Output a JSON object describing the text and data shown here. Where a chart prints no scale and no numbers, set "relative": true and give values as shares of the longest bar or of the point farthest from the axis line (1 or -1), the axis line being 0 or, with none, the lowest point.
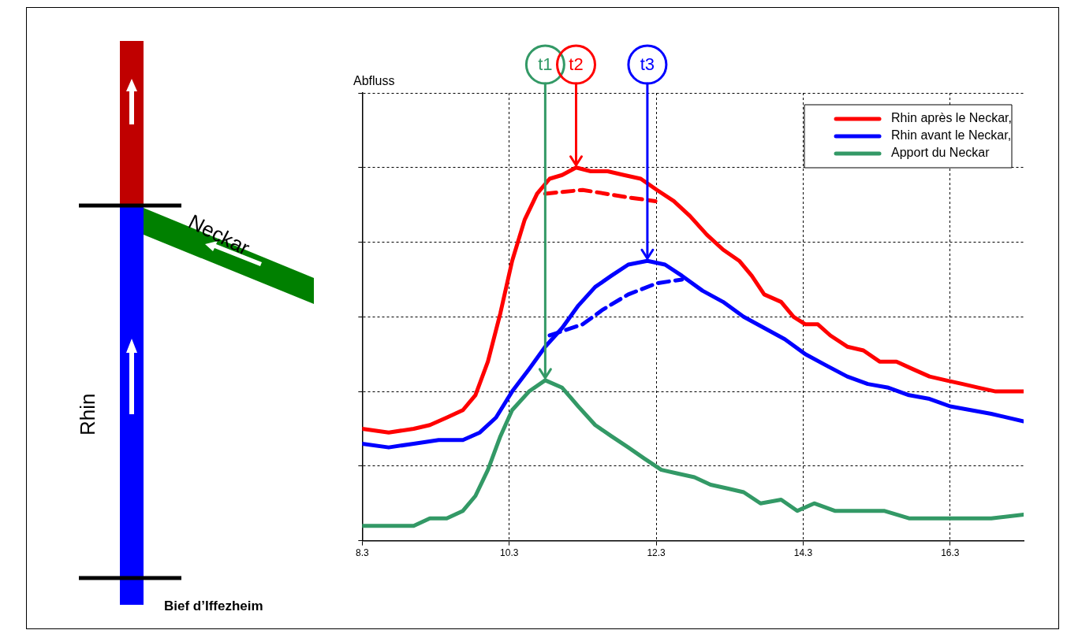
{
  "chart_data": {
    "type": "line",
    "relative": true,
    "xlim": [
      8.3,
      17.3
    ],
    "xticks": [
      8.3,
      10.3,
      12.3,
      14.3,
      16.3
    ],
    "grid": true,
    "legend": "top right",
    "marker": "none",
    "series": [
      {
        "name": "Rhin après le Neckar,",
        "color": "#ff0000",
        "x": [
          8.3,
          8.66,
          9.0,
          9.22,
          9.45,
          9.67,
          9.84,
          10.01,
          10.18,
          10.34,
          10.51,
          10.68,
          10.85,
          11.02,
          11.21,
          11.41,
          11.64,
          11.86,
          12.09,
          12.31,
          12.54,
          12.76,
          12.99,
          13.21,
          13.43,
          13.6,
          13.77,
          14.0,
          14.17,
          14.33,
          14.5,
          14.67,
          14.9,
          15.12,
          15.34,
          15.57,
          15.79,
          16.02,
          16.24,
          16.47,
          16.69,
          16.92,
          17.3
        ],
        "values": [
          0.3,
          0.29,
          0.3,
          0.31,
          0.33,
          0.35,
          0.39,
          0.48,
          0.61,
          0.75,
          0.86,
          0.93,
          0.97,
          0.98,
          1.0,
          0.99,
          0.99,
          0.98,
          0.97,
          0.94,
          0.91,
          0.87,
          0.82,
          0.78,
          0.75,
          0.71,
          0.66,
          0.64,
          0.6,
          0.58,
          0.58,
          0.55,
          0.52,
          0.51,
          0.48,
          0.48,
          0.46,
          0.44,
          0.43,
          0.42,
          0.41,
          0.4,
          0.4
        ]
      },
      {
        "name": "Rhin avant le Neckar,",
        "color": "#0000ff",
        "x": [
          8.3,
          8.66,
          9.0,
          9.34,
          9.67,
          9.9,
          10.12,
          10.34,
          10.57,
          10.79,
          11.02,
          11.24,
          11.47,
          11.69,
          11.92,
          12.18,
          12.42,
          12.65,
          12.93,
          13.21,
          13.49,
          13.77,
          14.05,
          14.33,
          14.61,
          14.9,
          15.18,
          15.46,
          15.74,
          16.02,
          16.3,
          16.58,
          16.86,
          17.3
        ],
        "values": [
          0.26,
          0.25,
          0.26,
          0.27,
          0.27,
          0.29,
          0.33,
          0.4,
          0.46,
          0.52,
          0.57,
          0.63,
          0.68,
          0.71,
          0.74,
          0.75,
          0.74,
          0.71,
          0.67,
          0.64,
          0.6,
          0.57,
          0.54,
          0.5,
          0.47,
          0.44,
          0.42,
          0.41,
          0.39,
          0.38,
          0.36,
          0.35,
          0.34,
          0.32
        ]
      },
      {
        "name": "Apport du Neckar",
        "color": "#339966",
        "x": [
          8.3,
          8.66,
          9.0,
          9.22,
          9.45,
          9.67,
          9.84,
          10.01,
          10.18,
          10.34,
          10.57,
          10.79,
          11.02,
          11.24,
          11.47,
          11.69,
          11.92,
          12.14,
          12.37,
          12.59,
          12.82,
          13.04,
          13.27,
          13.49,
          13.72,
          14.0,
          14.22,
          14.45,
          14.73,
          15.06,
          15.4,
          15.74,
          16.08,
          16.41,
          16.86,
          17.3
        ],
        "values": [
          0.04,
          0.04,
          0.04,
          0.06,
          0.06,
          0.08,
          0.12,
          0.19,
          0.28,
          0.35,
          0.4,
          0.43,
          0.41,
          0.36,
          0.31,
          0.28,
          0.25,
          0.22,
          0.19,
          0.18,
          0.17,
          0.15,
          0.14,
          0.13,
          0.1,
          0.11,
          0.08,
          0.1,
          0.08,
          0.08,
          0.08,
          0.06,
          0.06,
          0.06,
          0.06,
          0.07
        ]
      },
      {
        "color": "#ff0000",
        "line_style": "dashed",
        "x": [
          10.79,
          11.3,
          11.92,
          12.29
        ],
        "values": [
          0.93,
          0.94,
          0.92,
          0.91
        ]
      },
      {
        "color": "#0000ff",
        "line_style": "dashed",
        "x": [
          10.85,
          11.3,
          11.58,
          11.92,
          12.31,
          12.65
        ],
        "values": [
          0.55,
          0.58,
          0.62,
          0.66,
          0.69,
          0.7
        ]
      }
    ],
    "annotations": [
      {
        "text": "t1",
        "x": 10.79,
        "y": 0.43
      },
      {
        "text": "t2",
        "x": 11.21,
        "y": 1.0
      },
      {
        "text": "t3",
        "x": 12.18,
        "y": 0.75
      },
      "Neckar",
      "Rhin",
      "Bief d’Iffezheim",
      "Abfluss"
    ]
  }
}
